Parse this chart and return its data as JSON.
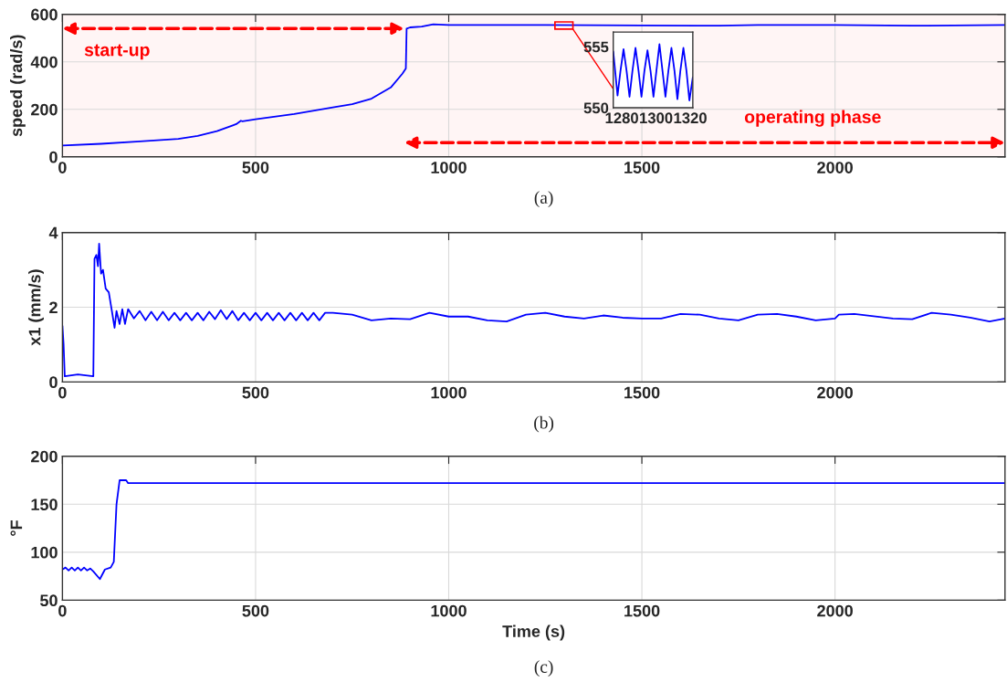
{
  "chart_data": [
    {
      "type": "line",
      "ylabel": "speed (rad/s)",
      "xlim": [
        0,
        2440
      ],
      "xticks": [
        0,
        500,
        1000,
        1500,
        2000
      ],
      "ylim": [
        0,
        600
      ],
      "yticks": [
        0,
        200,
        400,
        600
      ],
      "grid": true,
      "annotations": [
        "(a)"
      ],
      "bands": [
        {
          "axis": "x",
          "from": 0,
          "to": 885,
          "label": "start-up",
          "color": "#ff0000"
        },
        {
          "axis": "x",
          "from": 885,
          "to": 2440,
          "label": "operating phase",
          "color": "#ff0000"
        }
      ],
      "series": [
        {
          "color": "#0000ff",
          "x": [
            0,
            100,
            200,
            300,
            350,
            400,
            450,
            462,
            466,
            500,
            600,
            700,
            750,
            800,
            850,
            880,
            889,
            891,
            900,
            930,
            960,
            1000,
            1250,
            1500,
            1700,
            1800,
            2000,
            2200,
            2440
          ],
          "values": [
            48,
            55,
            65,
            76,
            88,
            108,
            138,
            152,
            150,
            158,
            180,
            208,
            222,
            245,
            292,
            350,
            372,
            540,
            545,
            548,
            558,
            555,
            555,
            553,
            552,
            555,
            555,
            552,
            555
          ]
        }
      ]
    },
    {
      "type": "line",
      "xlim": [
        1275,
        1321.5
      ],
      "xticks": [
        1280,
        1300,
        1320
      ],
      "ylim": [
        550,
        556.2
      ],
      "yticks": [
        550,
        555
      ],
      "series": [
        {
          "color": "#0000ff",
          "x": [
            1275,
            1277.5,
            1279.2,
            1281,
            1282.8,
            1284.5,
            1286.2,
            1288,
            1289.8,
            1291.5,
            1293.2,
            1295,
            1296.8,
            1298.5,
            1300.2,
            1302,
            1303.8,
            1305.5,
            1307.2,
            1309,
            1310.8,
            1312.5,
            1314.2,
            1316,
            1317.8,
            1319.5,
            1321.5
          ],
          "values": [
            554.6,
            551.0,
            553.0,
            554.8,
            553.0,
            550.9,
            553.0,
            554.9,
            553.0,
            550.9,
            553.0,
            554.7,
            553.0,
            550.9,
            553.0,
            555.2,
            553.0,
            550.9,
            553.0,
            554.9,
            553.0,
            550.7,
            553.0,
            554.9,
            553.0,
            550.6,
            552.5
          ]
        }
      ]
    },
    {
      "type": "line",
      "ylabel": "x1 (mm/s)",
      "xlim": [
        0,
        2440
      ],
      "xticks": [
        0,
        500,
        1000,
        1500,
        2000
      ],
      "ylim": [
        0,
        4
      ],
      "yticks": [
        0,
        2,
        4
      ],
      "grid": true,
      "annotations": [
        "(b)"
      ],
      "series": [
        {
          "color": "#0000ff",
          "x": [
            0,
            3,
            6,
            40,
            80,
            83,
            88,
            92,
            95,
            100,
            105,
            112,
            120,
            128,
            135,
            140,
            148,
            155,
            162,
            170,
            185,
            200,
            215,
            230,
            245,
            260,
            275,
            290,
            305,
            320,
            335,
            350,
            365,
            380,
            395,
            410,
            425,
            440,
            455,
            470,
            485,
            500,
            515,
            530,
            545,
            560,
            575,
            590,
            605,
            620,
            635,
            650,
            665,
            680,
            700,
            750,
            800,
            850,
            900,
            950,
            1000,
            1050,
            1100,
            1150,
            1200,
            1250,
            1300,
            1350,
            1400,
            1450,
            1500,
            1550,
            1600,
            1650,
            1700,
            1750,
            1800,
            1850,
            1900,
            1950,
            2000,
            2010,
            2050,
            2100,
            2150,
            2200,
            2250,
            2300,
            2350,
            2400,
            2440
          ],
          "values": [
            1.5,
            1.0,
            0.15,
            0.2,
            0.15,
            3.3,
            3.4,
            3.1,
            3.7,
            2.9,
            3.0,
            2.5,
            2.4,
            1.9,
            1.45,
            1.9,
            1.55,
            1.95,
            1.55,
            1.95,
            1.7,
            1.9,
            1.65,
            1.88,
            1.65,
            1.88,
            1.65,
            1.85,
            1.65,
            1.85,
            1.65,
            1.85,
            1.65,
            1.88,
            1.68,
            1.92,
            1.68,
            1.9,
            1.65,
            1.85,
            1.65,
            1.85,
            1.65,
            1.85,
            1.65,
            1.85,
            1.65,
            1.85,
            1.65,
            1.85,
            1.65,
            1.85,
            1.65,
            1.85,
            1.85,
            1.8,
            1.65,
            1.7,
            1.68,
            1.85,
            1.75,
            1.75,
            1.65,
            1.62,
            1.8,
            1.85,
            1.75,
            1.7,
            1.78,
            1.72,
            1.7,
            1.7,
            1.82,
            1.8,
            1.7,
            1.65,
            1.8,
            1.82,
            1.75,
            1.65,
            1.7,
            1.8,
            1.82,
            1.76,
            1.7,
            1.68,
            1.85,
            1.8,
            1.72,
            1.62,
            1.7
          ]
        }
      ]
    },
    {
      "type": "line",
      "xlabel": "Time (s)",
      "ylabel": "°F",
      "xlim": [
        0,
        2440
      ],
      "xticks": [
        0,
        500,
        1000,
        1500,
        2000
      ],
      "ylim": [
        50,
        200
      ],
      "yticks": [
        50,
        100,
        150,
        200
      ],
      "grid": true,
      "annotations": [
        "(c)"
      ],
      "series": [
        {
          "color": "#0000ff",
          "x": [
            0,
            8,
            16,
            24,
            32,
            40,
            48,
            56,
            64,
            72,
            80,
            97,
            110,
            125,
            133,
            140,
            148,
            165,
            170,
            400,
            800,
            1200,
            1600,
            2000,
            2440
          ],
          "values": [
            82,
            84,
            81,
            84,
            81,
            84,
            81,
            84,
            81,
            83,
            80,
            72,
            82,
            84,
            90,
            150,
            175,
            175,
            172,
            172,
            172,
            172,
            172,
            172,
            172
          ]
        }
      ]
    }
  ]
}
